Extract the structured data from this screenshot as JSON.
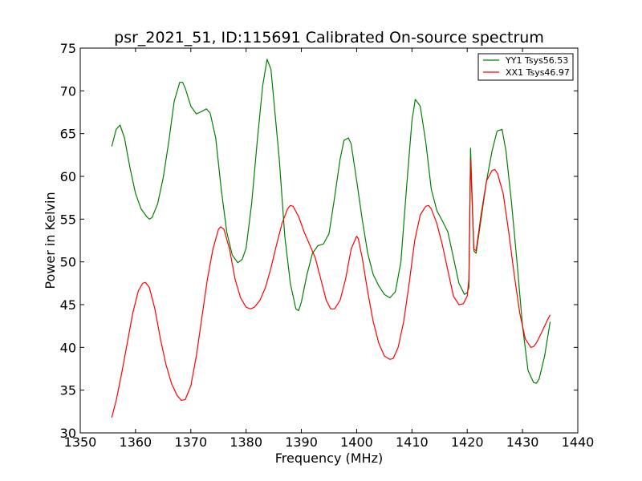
{
  "chart_data": {
    "type": "line",
    "title": "psr_2021_51, ID:115691 Calibrated On-source spectrum",
    "xlabel": "Frequency (MHz)",
    "ylabel": "Power in Kelvin",
    "xlim": [
      1350,
      1440
    ],
    "ylim": [
      30,
      75
    ],
    "xticks": [
      1350,
      1360,
      1370,
      1380,
      1390,
      1400,
      1410,
      1420,
      1430,
      1440
    ],
    "yticks": [
      30,
      35,
      40,
      45,
      50,
      55,
      60,
      65,
      70,
      75
    ],
    "grid": false,
    "legend_position": "top-right",
    "series": [
      {
        "name": "YY1 Tsys56.53",
        "color": "#008000",
        "x": [
          1355.7,
          1356.5,
          1357.2,
          1358.0,
          1359.0,
          1360.0,
          1361.0,
          1362.0,
          1362.5,
          1363.0,
          1364.0,
          1365.0,
          1366.0,
          1367.0,
          1368.0,
          1368.5,
          1369.0,
          1370.0,
          1371.0,
          1372.0,
          1372.8,
          1373.5,
          1374.5,
          1375.5,
          1376.5,
          1377.5,
          1378.5,
          1379.3,
          1380.0,
          1381.0,
          1382.0,
          1383.0,
          1383.8,
          1384.5,
          1385.0,
          1386.0,
          1387.0,
          1388.0,
          1389.0,
          1389.5,
          1390.0,
          1391.0,
          1392.0,
          1393.0,
          1394.0,
          1395.0,
          1396.0,
          1397.0,
          1397.7,
          1398.5,
          1399.0,
          1400.0,
          1401.0,
          1402.0,
          1403.0,
          1404.0,
          1405.0,
          1406.0,
          1407.0,
          1408.0,
          1409.0,
          1410.0,
          1410.6,
          1411.5,
          1412.5,
          1413.5,
          1414.5,
          1415.5,
          1416.5,
          1417.5,
          1418.5,
          1419.5,
          1420.0,
          1420.3,
          1420.6,
          1421.2,
          1421.6,
          1422.5,
          1423.5,
          1424.5,
          1425.4,
          1426.3,
          1427.0,
          1428.0,
          1429.0,
          1430.0,
          1431.0,
          1432.0,
          1432.5,
          1433.0,
          1434.0,
          1435.0
        ],
        "values": [
          63.5,
          65.5,
          66.0,
          64.5,
          61.0,
          58.0,
          56.2,
          55.3,
          55.0,
          55.2,
          56.8,
          59.8,
          64.0,
          68.8,
          71.0,
          71.0,
          70.3,
          68.2,
          67.3,
          67.6,
          67.9,
          67.4,
          64.5,
          58.5,
          53.5,
          50.8,
          49.9,
          50.3,
          51.6,
          56.8,
          64.0,
          70.6,
          73.7,
          72.5,
          69.0,
          62.0,
          53.0,
          47.5,
          44.5,
          44.3,
          45.3,
          48.5,
          51.0,
          51.9,
          52.1,
          53.3,
          57.5,
          62.0,
          64.2,
          64.5,
          63.8,
          59.5,
          55.0,
          51.0,
          48.5,
          47.2,
          46.2,
          45.8,
          46.5,
          50.0,
          58.5,
          66.5,
          69.0,
          68.2,
          64.0,
          58.5,
          56.0,
          54.8,
          53.5,
          50.5,
          47.5,
          46.2,
          46.4,
          47.0,
          63.3,
          51.3,
          51.0,
          55.0,
          59.5,
          63.0,
          65.3,
          65.5,
          63.0,
          57.0,
          50.0,
          42.5,
          37.3,
          35.9,
          35.8,
          36.3,
          39.0,
          43.0
        ]
      },
      {
        "name": "XX1 Tsys46.97",
        "color": "#ff0000",
        "x": [
          1355.7,
          1356.5,
          1357.5,
          1358.5,
          1359.5,
          1360.5,
          1361.3,
          1361.8,
          1362.5,
          1363.5,
          1364.5,
          1365.5,
          1366.5,
          1367.5,
          1368.3,
          1369.0,
          1370.0,
          1371.0,
          1372.0,
          1373.0,
          1374.0,
          1375.0,
          1375.4,
          1376.0,
          1377.0,
          1378.0,
          1379.0,
          1380.0,
          1380.8,
          1381.5,
          1382.5,
          1383.5,
          1384.5,
          1385.5,
          1386.5,
          1387.5,
          1388.0,
          1388.5,
          1389.5,
          1390.5,
          1391.5,
          1392.5,
          1393.5,
          1394.5,
          1395.3,
          1396.0,
          1397.0,
          1398.0,
          1399.0,
          1400.0,
          1400.3,
          1401.0,
          1402.0,
          1403.0,
          1404.0,
          1405.0,
          1406.0,
          1406.6,
          1407.5,
          1408.5,
          1409.5,
          1410.5,
          1411.5,
          1412.5,
          1413.0,
          1413.5,
          1414.5,
          1415.5,
          1416.5,
          1417.5,
          1418.5,
          1419.3,
          1420.0,
          1420.3,
          1420.6,
          1421.2,
          1421.6,
          1422.5,
          1423.5,
          1424.5,
          1425.0,
          1425.5,
          1426.5,
          1427.5,
          1428.5,
          1429.5,
          1430.5,
          1431.5,
          1432.0,
          1432.5,
          1433.5,
          1434.5,
          1435.0
        ],
        "values": [
          31.8,
          33.8,
          37.0,
          40.5,
          44.0,
          46.6,
          47.5,
          47.6,
          47.0,
          44.5,
          41.0,
          38.0,
          35.8,
          34.4,
          33.8,
          33.9,
          35.5,
          39.0,
          43.5,
          48.0,
          51.5,
          53.8,
          54.1,
          53.8,
          51.5,
          48.0,
          45.8,
          44.7,
          44.5,
          44.7,
          45.5,
          47.0,
          49.3,
          52.0,
          54.5,
          56.2,
          56.6,
          56.5,
          55.3,
          53.5,
          52.0,
          50.5,
          48.0,
          45.5,
          44.5,
          44.5,
          45.5,
          48.0,
          51.5,
          53.0,
          52.7,
          50.5,
          46.5,
          43.0,
          40.5,
          39.0,
          38.6,
          38.7,
          40.0,
          43.0,
          47.5,
          52.5,
          55.5,
          56.5,
          56.6,
          56.2,
          54.5,
          52.0,
          49.0,
          46.0,
          45.0,
          45.1,
          46.0,
          48.0,
          62.0,
          51.5,
          51.3,
          55.5,
          59.5,
          60.7,
          60.8,
          60.3,
          58.0,
          53.5,
          48.5,
          44.0,
          41.0,
          40.0,
          40.1,
          40.5,
          41.8,
          43.2,
          43.8
        ]
      }
    ]
  }
}
